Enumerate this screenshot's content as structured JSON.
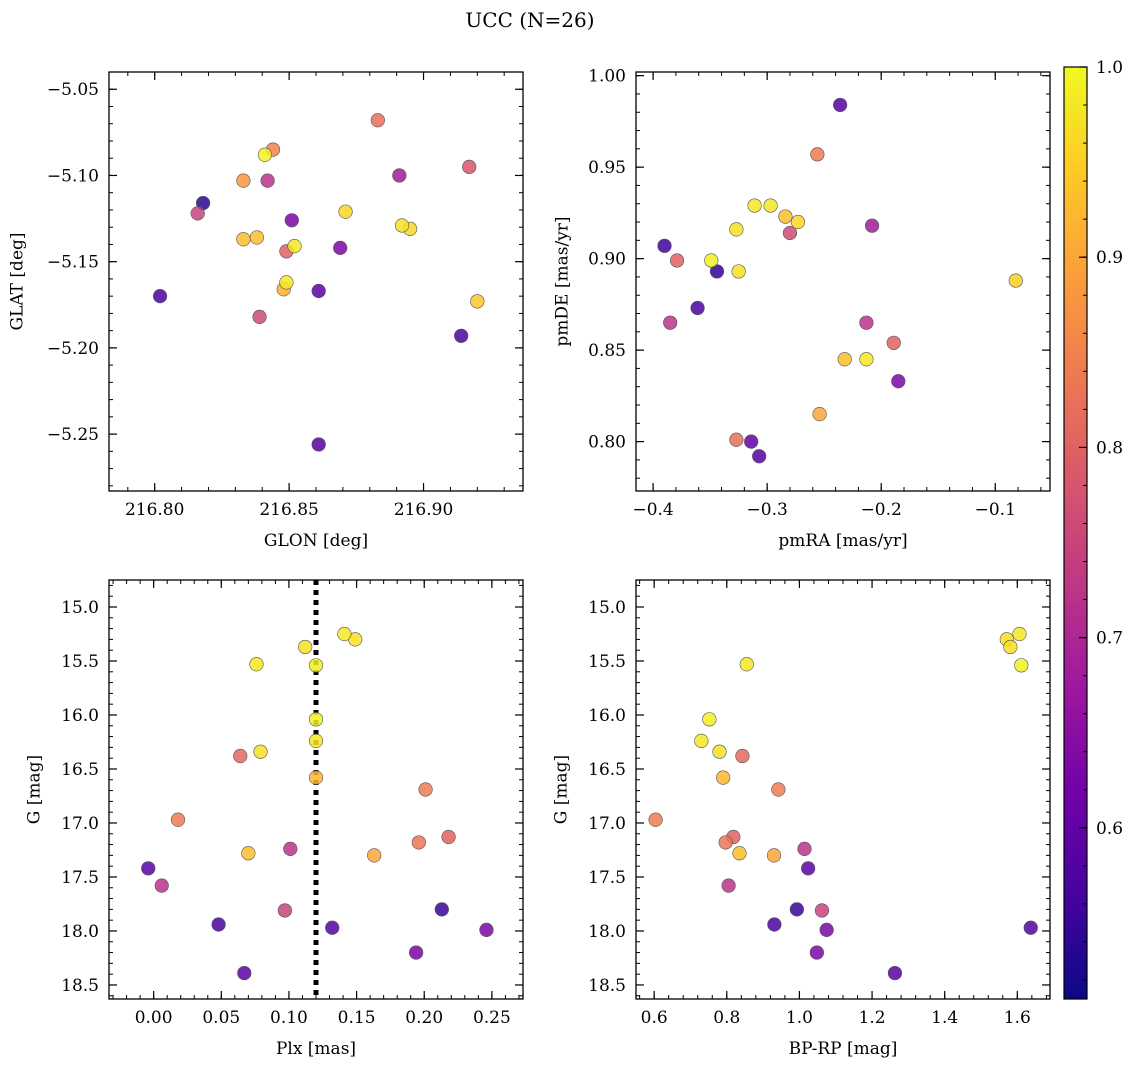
{
  "figure": {
    "title": "UCC (N=26)"
  },
  "colormap": [
    "#0d0887",
    "#46039f",
    "#7201a8",
    "#9c179e",
    "#bd3786",
    "#d8576b",
    "#ed7953",
    "#fb9f3a",
    "#fdca26",
    "#f0f921"
  ],
  "colorbar": {
    "min": 0.51,
    "max": 1.0,
    "ticks": [
      "0.6",
      "0.7",
      "0.8",
      "0.9",
      "1.0"
    ],
    "tick_values": [
      0.6,
      0.7,
      0.8,
      0.9,
      1.0
    ]
  },
  "chart_data": [
    {
      "type": "scatter",
      "xlabel": "GLON [deg]",
      "ylabel": "GLAT [deg]",
      "xlim": [
        216.783,
        216.937
      ],
      "ylim": [
        -5.283,
        -5.04
      ],
      "xticks": [
        216.8,
        216.85,
        216.9
      ],
      "xtick_labels": [
        "216.80",
        "216.85",
        "216.90"
      ],
      "yticks": [
        -5.25,
        -5.2,
        -5.15,
        -5.1,
        -5.05
      ],
      "ytick_labels": [
        "−5.25",
        "−5.20",
        "−5.15",
        "−5.10",
        "−5.05"
      ],
      "xminor": 0.01,
      "yminor": 0.01,
      "invert_y": false,
      "points": [
        {
          "x": 216.883,
          "y": -5.068,
          "p": 0.82
        },
        {
          "x": 216.844,
          "y": -5.085,
          "p": 0.85
        },
        {
          "x": 216.841,
          "y": -5.088,
          "p": 0.99
        },
        {
          "x": 216.917,
          "y": -5.095,
          "p": 0.78
        },
        {
          "x": 216.891,
          "y": -5.1,
          "p": 0.68
        },
        {
          "x": 216.833,
          "y": -5.103,
          "p": 0.88
        },
        {
          "x": 216.842,
          "y": -5.103,
          "p": 0.72
        },
        {
          "x": 216.818,
          "y": -5.116,
          "p": 0.54
        },
        {
          "x": 216.871,
          "y": -5.121,
          "p": 0.96
        },
        {
          "x": 216.816,
          "y": -5.122,
          "p": 0.75
        },
        {
          "x": 216.851,
          "y": -5.126,
          "p": 0.63
        },
        {
          "x": 216.892,
          "y": -5.129,
          "p": 0.97
        },
        {
          "x": 216.895,
          "y": -5.131,
          "p": 0.96
        },
        {
          "x": 216.838,
          "y": -5.136,
          "p": 0.93
        },
        {
          "x": 216.833,
          "y": -5.137,
          "p": 0.93
        },
        {
          "x": 216.852,
          "y": -5.141,
          "p": 0.98
        },
        {
          "x": 216.869,
          "y": -5.142,
          "p": 0.63
        },
        {
          "x": 216.849,
          "y": -5.144,
          "p": 0.8
        },
        {
          "x": 216.849,
          "y": -5.162,
          "p": 0.98
        },
        {
          "x": 216.848,
          "y": -5.166,
          "p": 0.91
        },
        {
          "x": 216.861,
          "y": -5.167,
          "p": 0.59
        },
        {
          "x": 216.802,
          "y": -5.17,
          "p": 0.57
        },
        {
          "x": 216.92,
          "y": -5.173,
          "p": 0.94
        },
        {
          "x": 216.839,
          "y": -5.182,
          "p": 0.76
        },
        {
          "x": 216.914,
          "y": -5.193,
          "p": 0.57
        },
        {
          "x": 216.861,
          "y": -5.256,
          "p": 0.58
        }
      ]
    },
    {
      "type": "scatter",
      "xlabel": "pmRA [mas/yr]",
      "ylabel": "pmDE [mas/yr]",
      "xlim": [
        -0.415,
        -0.052
      ],
      "ylim": [
        0.773,
        1.002
      ],
      "xticks": [
        -0.4,
        -0.3,
        -0.2,
        -0.1
      ],
      "xtick_labels": [
        "−0.4",
        "−0.3",
        "−0.2",
        "−0.1"
      ],
      "yticks": [
        0.8,
        0.85,
        0.9,
        0.95,
        1.0
      ],
      "ytick_labels": [
        "0.80",
        "0.85",
        "0.90",
        "0.95",
        "1.00"
      ],
      "xminor": 0.02,
      "yminor": 0.01,
      "invert_y": false,
      "points": [
        {
          "x": -0.236,
          "y": 0.984,
          "p": 0.58
        },
        {
          "x": -0.256,
          "y": 0.957,
          "p": 0.84
        },
        {
          "x": -0.311,
          "y": 0.929,
          "p": 0.98
        },
        {
          "x": -0.297,
          "y": 0.929,
          "p": 0.98
        },
        {
          "x": -0.284,
          "y": 0.923,
          "p": 0.93
        },
        {
          "x": -0.273,
          "y": 0.92,
          "p": 0.96
        },
        {
          "x": -0.208,
          "y": 0.918,
          "p": 0.68
        },
        {
          "x": -0.327,
          "y": 0.916,
          "p": 0.97
        },
        {
          "x": -0.28,
          "y": 0.914,
          "p": 0.76
        },
        {
          "x": -0.39,
          "y": 0.907,
          "p": 0.56
        },
        {
          "x": -0.379,
          "y": 0.899,
          "p": 0.8
        },
        {
          "x": -0.349,
          "y": 0.899,
          "p": 0.99
        },
        {
          "x": -0.344,
          "y": 0.893,
          "p": 0.54
        },
        {
          "x": -0.325,
          "y": 0.893,
          "p": 0.97
        },
        {
          "x": -0.082,
          "y": 0.888,
          "p": 0.95
        },
        {
          "x": -0.361,
          "y": 0.873,
          "p": 0.57
        },
        {
          "x": -0.385,
          "y": 0.865,
          "p": 0.72
        },
        {
          "x": -0.213,
          "y": 0.865,
          "p": 0.72
        },
        {
          "x": -0.189,
          "y": 0.854,
          "p": 0.8
        },
        {
          "x": -0.232,
          "y": 0.845,
          "p": 0.93
        },
        {
          "x": -0.213,
          "y": 0.845,
          "p": 0.98
        },
        {
          "x": -0.185,
          "y": 0.833,
          "p": 0.63
        },
        {
          "x": -0.254,
          "y": 0.815,
          "p": 0.9
        },
        {
          "x": -0.327,
          "y": 0.801,
          "p": 0.82
        },
        {
          "x": -0.314,
          "y": 0.8,
          "p": 0.6
        },
        {
          "x": -0.307,
          "y": 0.792,
          "p": 0.58
        }
      ]
    },
    {
      "type": "scatter",
      "xlabel": "Plx [mas]",
      "ylabel": "G [mag]",
      "xlim": [
        -0.033,
        0.273
      ],
      "ylim": [
        18.63,
        14.75
      ],
      "xticks": [
        0.0,
        0.05,
        0.1,
        0.15,
        0.2,
        0.25
      ],
      "xtick_labels": [
        "0.00",
        "0.05",
        "0.10",
        "0.15",
        "0.20",
        "0.25"
      ],
      "yticks": [
        15.0,
        15.5,
        16.0,
        16.5,
        17.0,
        17.5,
        18.0,
        18.5
      ],
      "ytick_labels": [
        "15.0",
        "15.5",
        "16.0",
        "16.5",
        "17.0",
        "17.5",
        "18.0",
        "18.5"
      ],
      "xminor": 0.01,
      "yminor": 0.1,
      "invert_y": true,
      "vline": {
        "x": 0.12,
        "style": "dotted"
      },
      "points": [
        {
          "x": 0.141,
          "y": 15.25,
          "p": 0.98
        },
        {
          "x": 0.149,
          "y": 15.3,
          "p": 0.97
        },
        {
          "x": 0.112,
          "y": 15.37,
          "p": 0.97
        },
        {
          "x": 0.076,
          "y": 15.53,
          "p": 0.98
        },
        {
          "x": 0.12,
          "y": 15.54,
          "p": 0.99
        },
        {
          "x": 0.12,
          "y": 16.04,
          "p": 0.99
        },
        {
          "x": 0.12,
          "y": 16.24,
          "p": 0.98
        },
        {
          "x": 0.079,
          "y": 16.34,
          "p": 0.97
        },
        {
          "x": 0.064,
          "y": 16.38,
          "p": 0.81
        },
        {
          "x": 0.12,
          "y": 16.58,
          "p": 0.92
        },
        {
          "x": 0.201,
          "y": 16.69,
          "p": 0.84
        },
        {
          "x": 0.018,
          "y": 16.97,
          "p": 0.84
        },
        {
          "x": 0.218,
          "y": 17.13,
          "p": 0.8
        },
        {
          "x": 0.196,
          "y": 17.18,
          "p": 0.83
        },
        {
          "x": 0.101,
          "y": 17.24,
          "p": 0.72
        },
        {
          "x": 0.07,
          "y": 17.28,
          "p": 0.93
        },
        {
          "x": 0.163,
          "y": 17.3,
          "p": 0.9
        },
        {
          "x": -0.004,
          "y": 17.42,
          "p": 0.59
        },
        {
          "x": 0.006,
          "y": 17.58,
          "p": 0.72
        },
        {
          "x": 0.213,
          "y": 17.8,
          "p": 0.55
        },
        {
          "x": 0.097,
          "y": 17.81,
          "p": 0.75
        },
        {
          "x": 0.048,
          "y": 17.94,
          "p": 0.57
        },
        {
          "x": 0.132,
          "y": 17.97,
          "p": 0.58
        },
        {
          "x": 0.246,
          "y": 17.99,
          "p": 0.63
        },
        {
          "x": 0.194,
          "y": 18.2,
          "p": 0.63
        },
        {
          "x": 0.067,
          "y": 18.39,
          "p": 0.59
        }
      ]
    },
    {
      "type": "scatter",
      "xlabel": "BP-RP [mag]",
      "ylabel": "G [mag]",
      "xlim": [
        0.55,
        1.69
      ],
      "ylim": [
        18.63,
        14.75
      ],
      "xticks": [
        0.6,
        0.8,
        1.0,
        1.2,
        1.4,
        1.6
      ],
      "xtick_labels": [
        "0.6",
        "0.8",
        "1.0",
        "1.2",
        "1.4",
        "1.6"
      ],
      "yticks": [
        15.0,
        15.5,
        16.0,
        16.5,
        17.0,
        17.5,
        18.0,
        18.5
      ],
      "ytick_labels": [
        "15.0",
        "15.5",
        "16.0",
        "16.5",
        "17.0",
        "17.5",
        "18.0",
        "18.5"
      ],
      "xminor": 0.04,
      "yminor": 0.1,
      "invert_y": true,
      "points": [
        {
          "x": 1.606,
          "y": 15.25,
          "p": 0.98
        },
        {
          "x": 1.571,
          "y": 15.3,
          "p": 0.97
        },
        {
          "x": 1.581,
          "y": 15.37,
          "p": 0.97
        },
        {
          "x": 1.611,
          "y": 15.54,
          "p": 0.99
        },
        {
          "x": 0.855,
          "y": 15.53,
          "p": 0.98
        },
        {
          "x": 0.752,
          "y": 16.04,
          "p": 0.99
        },
        {
          "x": 0.73,
          "y": 16.24,
          "p": 0.98
        },
        {
          "x": 0.78,
          "y": 16.34,
          "p": 0.97
        },
        {
          "x": 0.843,
          "y": 16.38,
          "p": 0.81
        },
        {
          "x": 0.79,
          "y": 16.58,
          "p": 0.92
        },
        {
          "x": 0.942,
          "y": 16.69,
          "p": 0.84
        },
        {
          "x": 0.604,
          "y": 16.97,
          "p": 0.84
        },
        {
          "x": 0.818,
          "y": 17.13,
          "p": 0.8
        },
        {
          "x": 0.797,
          "y": 17.18,
          "p": 0.83
        },
        {
          "x": 1.014,
          "y": 17.24,
          "p": 0.72
        },
        {
          "x": 0.835,
          "y": 17.28,
          "p": 0.93
        },
        {
          "x": 0.93,
          "y": 17.3,
          "p": 0.9
        },
        {
          "x": 1.024,
          "y": 17.42,
          "p": 0.59
        },
        {
          "x": 0.805,
          "y": 17.58,
          "p": 0.72
        },
        {
          "x": 0.993,
          "y": 17.8,
          "p": 0.55
        },
        {
          "x": 1.062,
          "y": 17.81,
          "p": 0.75
        },
        {
          "x": 0.931,
          "y": 17.94,
          "p": 0.57
        },
        {
          "x": 1.637,
          "y": 17.97,
          "p": 0.58
        },
        {
          "x": 1.075,
          "y": 17.99,
          "p": 0.63
        },
        {
          "x": 1.048,
          "y": 18.2,
          "p": 0.63
        },
        {
          "x": 1.263,
          "y": 18.39,
          "p": 0.59
        }
      ]
    }
  ]
}
